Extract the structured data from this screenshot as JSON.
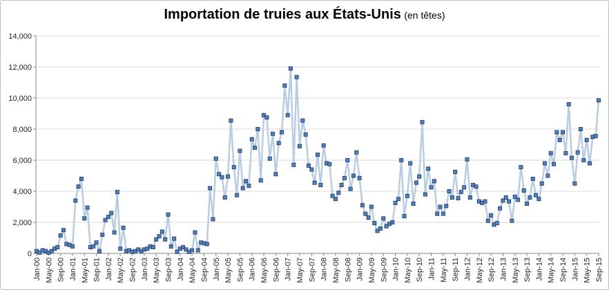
{
  "chart_data": {
    "type": "line",
    "title": "Importation de truies aux États-Unis",
    "subtitle": "(en têtes)",
    "xlabel": "",
    "ylabel": "",
    "ylim": [
      0,
      14000
    ],
    "yticks": [
      "0",
      "2,000",
      "4,000",
      "6,000",
      "8,000",
      "10,000",
      "12,000",
      "14,000"
    ],
    "ytick_values": [
      0,
      2000,
      4000,
      6000,
      8000,
      10000,
      12000,
      14000
    ],
    "grid": true,
    "legend": "none",
    "colors": {
      "line": "#b8cce4",
      "marker_fill": "#4f81bd",
      "marker_edge": "#1f3864",
      "grid": "#d9d9d9"
    },
    "x_tick_labels": [
      {
        "index": 0,
        "label": "Jan-00"
      },
      {
        "index": 4,
        "label": "May-00"
      },
      {
        "index": 8,
        "label": "Sep-00"
      },
      {
        "index": 12,
        "label": "Jan-01"
      },
      {
        "index": 16,
        "label": "May-01"
      },
      {
        "index": 20,
        "label": "Sep-01"
      },
      {
        "index": 24,
        "label": "Jan-02"
      },
      {
        "index": 28,
        "label": "May-02"
      },
      {
        "index": 32,
        "label": "Sep-02"
      },
      {
        "index": 36,
        "label": "Jan-03"
      },
      {
        "index": 40,
        "label": "May-03"
      },
      {
        "index": 44,
        "label": "Sep-03"
      },
      {
        "index": 48,
        "label": "Jan-04"
      },
      {
        "index": 52,
        "label": "May-04"
      },
      {
        "index": 56,
        "label": "Sep-04"
      },
      {
        "index": 60,
        "label": "Jan-05"
      },
      {
        "index": 64,
        "label": "May-05"
      },
      {
        "index": 68,
        "label": "Sep-05"
      },
      {
        "index": 72,
        "label": "Jan-06"
      },
      {
        "index": 76,
        "label": "May-06"
      },
      {
        "index": 80,
        "label": "Sep-06"
      },
      {
        "index": 84,
        "label": "Jan-07"
      },
      {
        "index": 88,
        "label": "May-07"
      },
      {
        "index": 92,
        "label": "Sep-07"
      },
      {
        "index": 96,
        "label": "Jan-08"
      },
      {
        "index": 100,
        "label": "May-08"
      },
      {
        "index": 104,
        "label": "Sep-08"
      },
      {
        "index": 108,
        "label": "Jan-09"
      },
      {
        "index": 112,
        "label": "May-09"
      },
      {
        "index": 116,
        "label": "Sep-09"
      },
      {
        "index": 120,
        "label": "Jan-10"
      },
      {
        "index": 124,
        "label": "May-10"
      },
      {
        "index": 128,
        "label": "Sep-10"
      },
      {
        "index": 132,
        "label": "Jan-11"
      },
      {
        "index": 136,
        "label": "May-11"
      },
      {
        "index": 140,
        "label": "Sep-11"
      },
      {
        "index": 144,
        "label": "Jan-12"
      },
      {
        "index": 148,
        "label": "May-12"
      },
      {
        "index": 152,
        "label": "Sep-12"
      },
      {
        "index": 156,
        "label": "Jan-13"
      },
      {
        "index": 160,
        "label": "May-13"
      },
      {
        "index": 164,
        "label": "Sep-13"
      },
      {
        "index": 168,
        "label": "Jan-14"
      },
      {
        "index": 172,
        "label": "May-14"
      },
      {
        "index": 176,
        "label": "Sep-14"
      },
      {
        "index": 180,
        "label": "Jan-15"
      },
      {
        "index": 184,
        "label": "May-15"
      },
      {
        "index": 188,
        "label": "Sep-15"
      }
    ],
    "values": [
      150,
      50,
      200,
      150,
      50,
      150,
      300,
      400,
      1150,
      1500,
      600,
      550,
      450,
      3400,
      4300,
      4800,
      2250,
      2950,
      400,
      450,
      700,
      150,
      1200,
      2150,
      2350,
      2600,
      1350,
      3950,
      300,
      1650,
      150,
      200,
      100,
      150,
      250,
      150,
      250,
      300,
      450,
      400,
      900,
      1100,
      1400,
      900,
      2500,
      450,
      950,
      100,
      300,
      400,
      250,
      100,
      200,
      1350,
      200,
      700,
      650,
      600,
      4200,
      2200,
      6100,
      5100,
      4900,
      3600,
      4950,
      8550,
      5550,
      3750,
      6600,
      4200,
      4650,
      4350,
      7350,
      6800,
      8000,
      4700,
      8900,
      8750,
      6100,
      7700,
      5100,
      7100,
      7800,
      10800,
      8900,
      11900,
      5700,
      11350,
      6900,
      8550,
      7650,
      5650,
      5400,
      4550,
      6350,
      4400,
      6950,
      5800,
      5750,
      3700,
      3500,
      3900,
      4400,
      4850,
      6000,
      4150,
      5000,
      6500,
      4850,
      3100,
      2550,
      2300,
      3000,
      1950,
      1450,
      1600,
      2250,
      1750,
      1900,
      2000,
      3250,
      3500,
      6000,
      2400,
      3700,
      5800,
      3200,
      4550,
      4950,
      8450,
      3800,
      5450,
      4250,
      4650,
      2550,
      3000,
      2550,
      3050,
      4000,
      3600,
      5250,
      3550,
      3950,
      4250,
      6050,
      3600,
      4400,
      4300,
      3350,
      3250,
      3350,
      2100,
      2450,
      1850,
      1950,
      2900,
      3400,
      3600,
      3350,
      2100,
      3650,
      3450,
      5550,
      4050,
      3200,
      3600,
      4800,
      3750,
      3500,
      4500,
      5800,
      5000,
      6450,
      5750,
      7800,
      7300,
      7800,
      6450,
      9600,
      6150,
      4500,
      6500,
      8000,
      6000,
      7300,
      5800,
      7500,
      7550,
      9850
    ]
  }
}
